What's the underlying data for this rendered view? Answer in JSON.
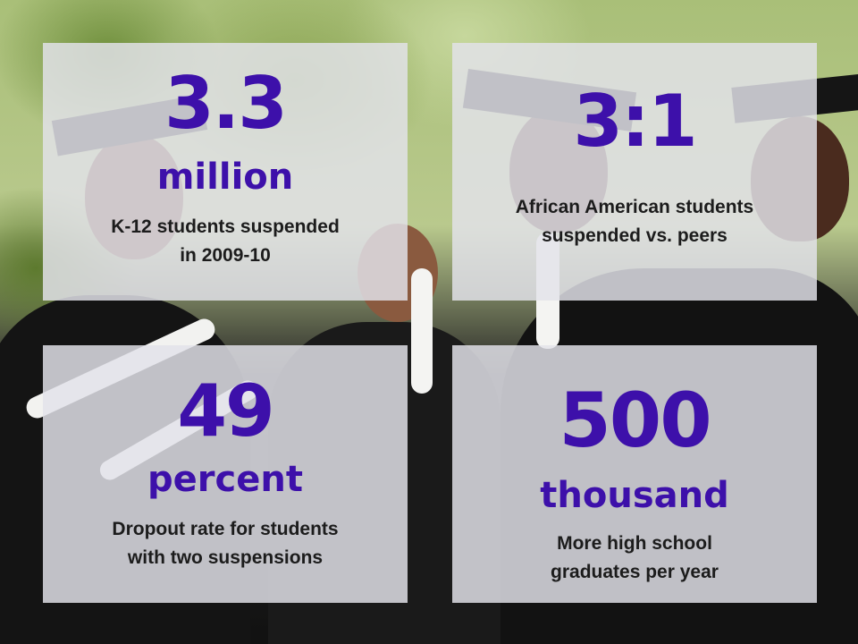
{
  "colors": {
    "accent": "#3d10aa",
    "card_background": "#e2e2ea",
    "body_text": "#1c1c1c"
  },
  "stats": [
    {
      "value": "3.3",
      "unit": "million",
      "description_lines": [
        "K-12 students suspended",
        "in 2009-10"
      ]
    },
    {
      "value": "3:1",
      "unit": "",
      "description_lines": [
        "African American students",
        "suspended vs. peers"
      ]
    },
    {
      "value": "49",
      "unit": "percent",
      "description_lines": [
        "Dropout rate for students",
        "with two suspensions"
      ]
    },
    {
      "value": "500",
      "unit": "thousand",
      "description_lines": [
        "More high school",
        "graduates per year"
      ]
    }
  ]
}
